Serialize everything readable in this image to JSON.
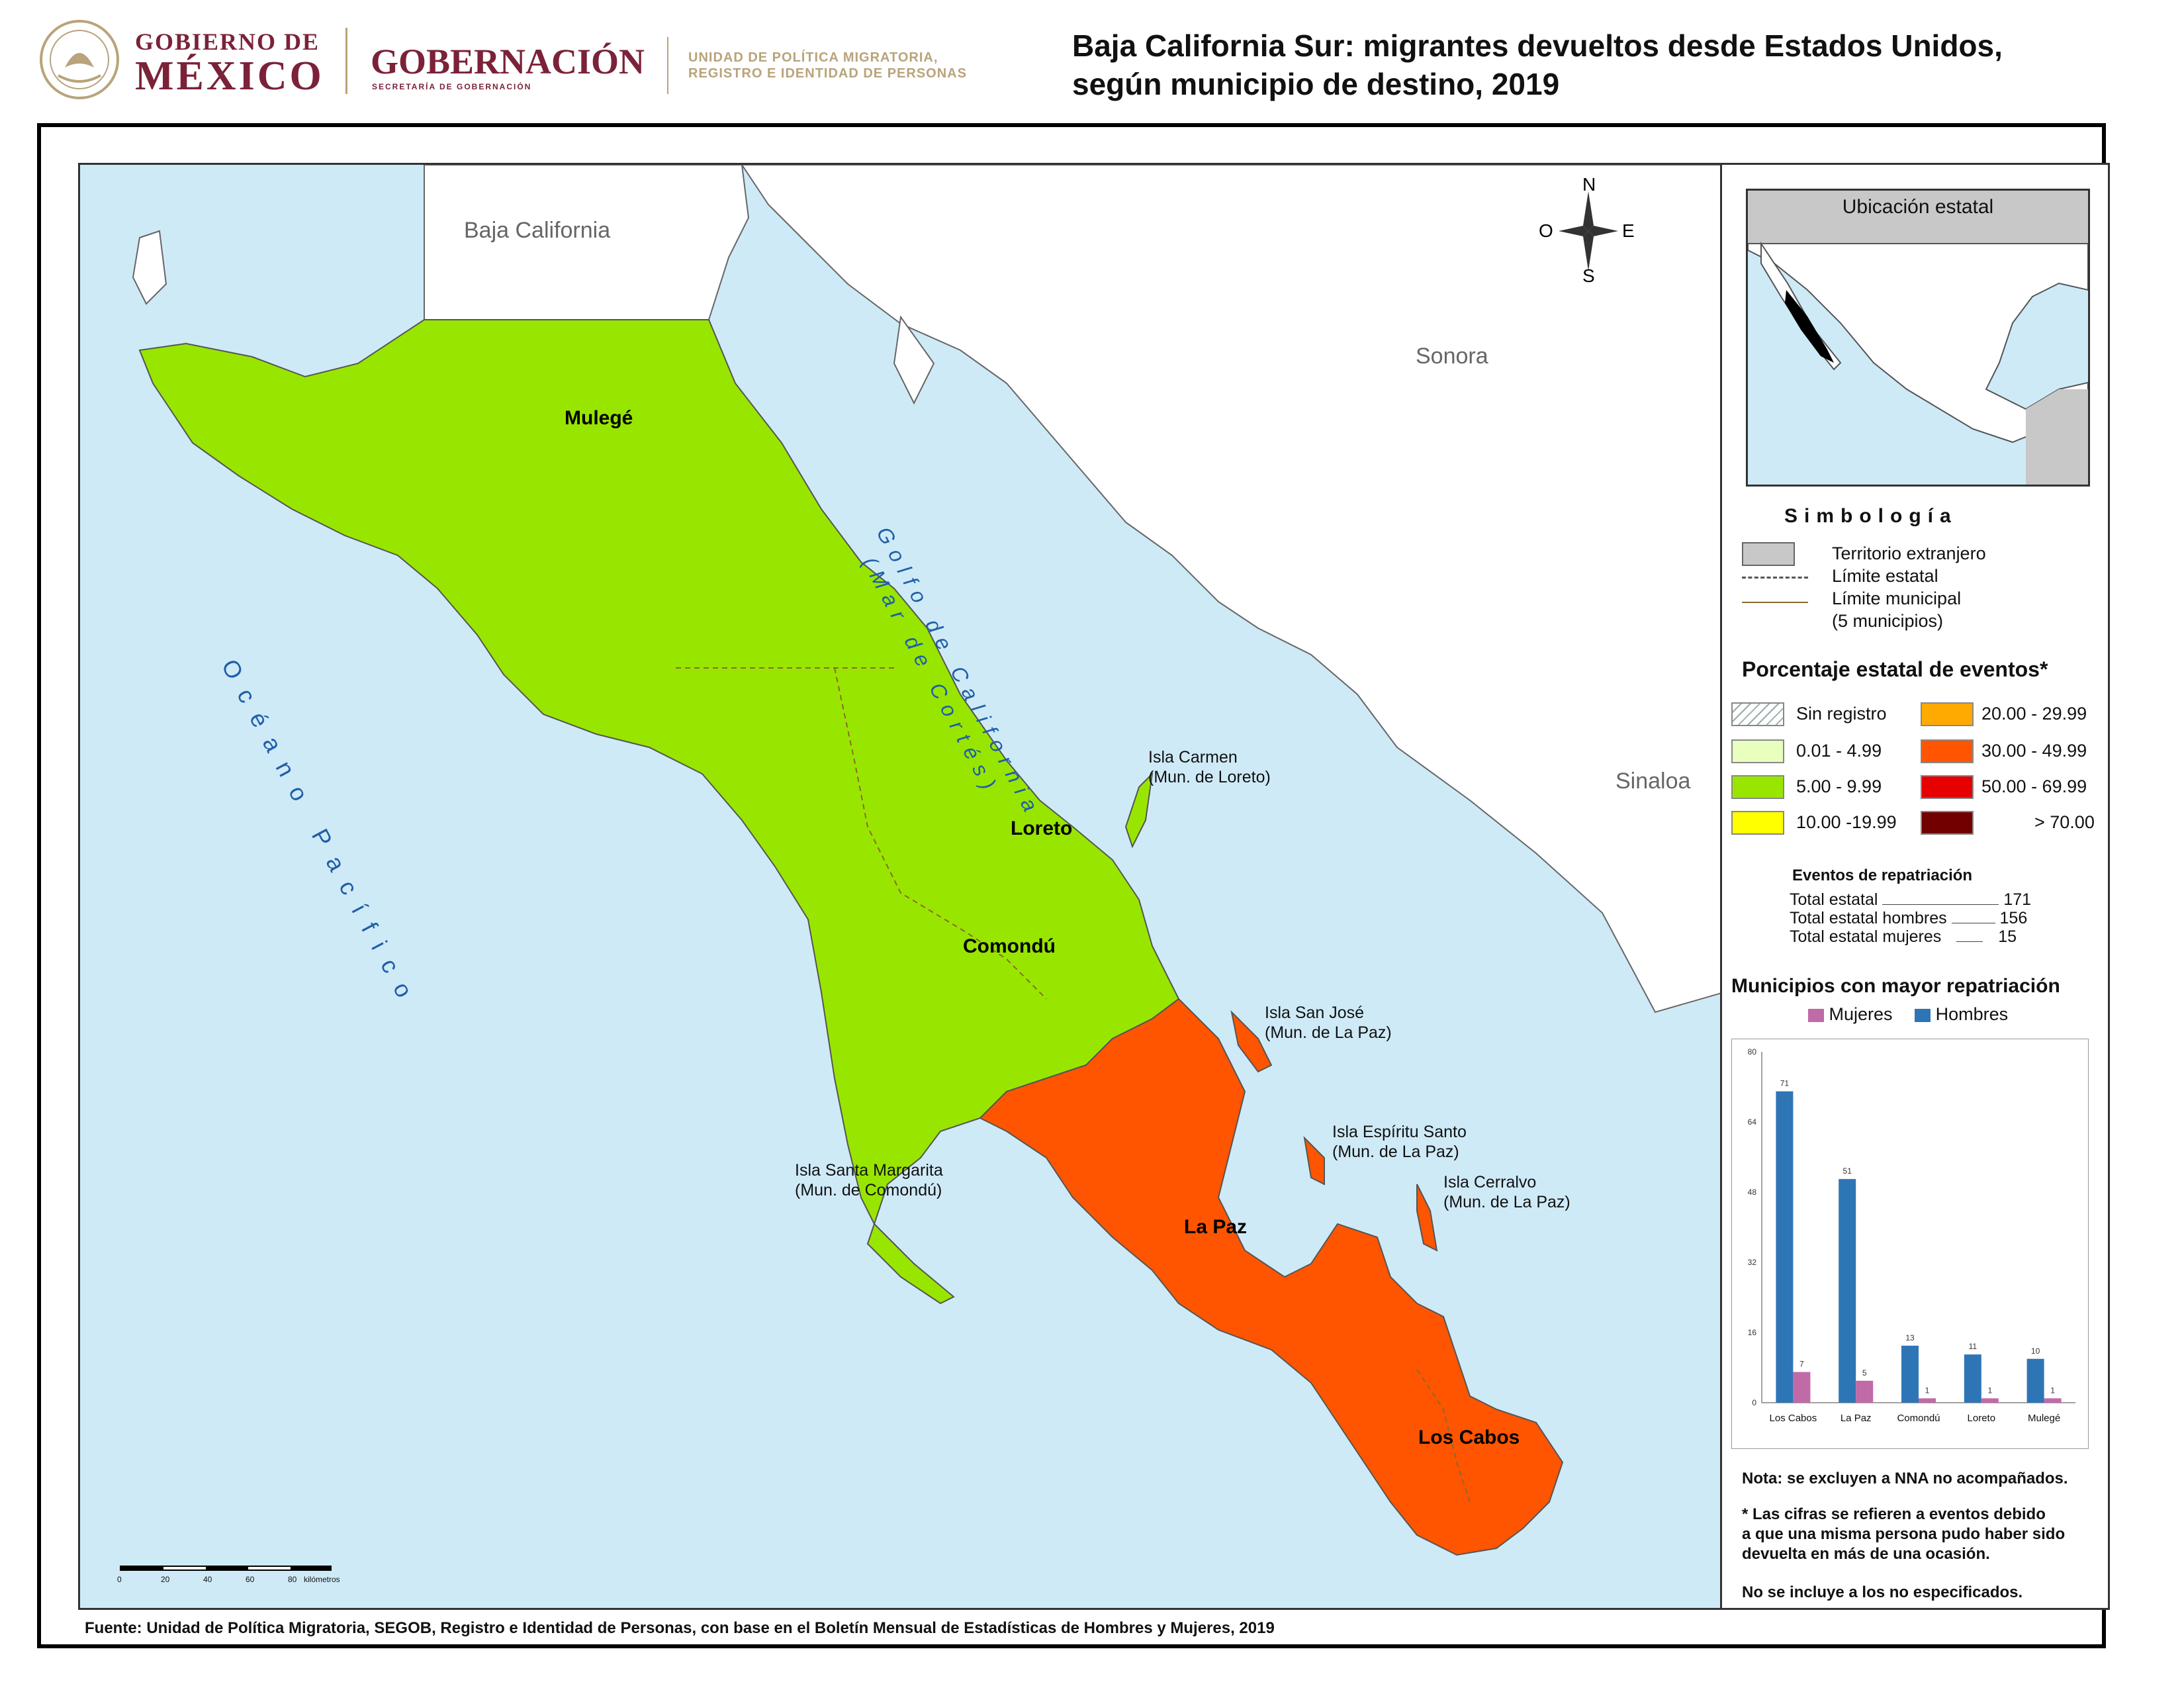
{
  "header": {
    "gob_line1": "GOBIERNO DE",
    "gob_line2": "MÉXICO",
    "secretaria": "GOBERNACIÓN",
    "secretaria_sub": "SECRETARÍA DE GOBERNACIÓN",
    "unidad_line1": "UNIDAD DE POLÍTICA MIGRATORIA,",
    "unidad_line2": "REGISTRO E IDENTIDAD DE PERSONAS"
  },
  "title": {
    "line1": "Baja California Sur: migrantes devueltos desde Estados Unidos,",
    "line2": "según municipio de destino, 2019"
  },
  "map": {
    "neighbors": {
      "baja_california": "Baja California",
      "sonora": "Sonora",
      "sinaloa": "Sinaloa"
    },
    "water": {
      "gulf_line1": "Golfo de California",
      "gulf_line2": "(Mar de Cortés)",
      "ocean": "Océano Pacífico"
    },
    "compass": {
      "n": "N",
      "s": "S",
      "e": "E",
      "o": "O"
    },
    "municipalities": [
      {
        "name": "Mulegé",
        "color": "#98e600",
        "range": "5.00 - 9.99"
      },
      {
        "name": "Loreto",
        "color": "#98e600",
        "range": "5.00 - 9.99"
      },
      {
        "name": "Comondú",
        "color": "#98e600",
        "range": "5.00 - 9.99"
      },
      {
        "name": "La Paz",
        "color": "#ff5500",
        "range": "30.00 - 49.99"
      },
      {
        "name": "Los Cabos",
        "color": "#ff5500",
        "range": "30.00 - 49.99"
      }
    ],
    "islands": [
      {
        "name": "Isla Carmen",
        "mun": "(Mun. de Loreto)"
      },
      {
        "name": "Isla San José",
        "mun": "(Mun. de La Paz)"
      },
      {
        "name": "Isla Espíritu Santo",
        "mun": "(Mun. de La Paz)"
      },
      {
        "name": "Isla Cerralvo",
        "mun": "(Mun. de La Paz)"
      },
      {
        "name": "Isla Santa Margarita",
        "mun": "(Mun. de Comondú)"
      }
    ],
    "scale": {
      "ticks": [
        "0",
        "20",
        "40",
        "60",
        "80"
      ],
      "unit": "kilómetros"
    }
  },
  "inset": {
    "title": "Ubicación estatal"
  },
  "legend": {
    "title": "Simbología",
    "items": {
      "territorio": "Territorio extranjero",
      "limite_estatal": "Límite estatal",
      "limite_municipal": "Límite municipal",
      "municipios_count": "(5 municipios)"
    },
    "pct_title": "Porcentaje estatal de eventos*",
    "classes": [
      {
        "label": "Sin registro",
        "color": "hatch"
      },
      {
        "label": "0.01  - 4.99",
        "color": "#e9ffbe"
      },
      {
        "label": "5.00  - 9.99",
        "color": "#98e600"
      },
      {
        "label": "10.00 -19.99",
        "color": "#ffff00"
      },
      {
        "label": "20.00 - 29.99",
        "color": "#ffaa00"
      },
      {
        "label": "30.00 - 49.99",
        "color": "#ff5500"
      },
      {
        "label": "50.00 - 69.99",
        "color": "#e60000"
      },
      {
        "label": "> 70.00",
        "color": "#730000"
      }
    ]
  },
  "events": {
    "title": "Eventos de repatriación",
    "rows": [
      {
        "label": "Total estatal",
        "value": "171"
      },
      {
        "label": "Total estatal hombres",
        "value": "156"
      },
      {
        "label": "Total estatal mujeres",
        "value": "15"
      }
    ]
  },
  "chart_data": {
    "type": "bar",
    "title": "Municipios con mayor repatriación",
    "categories": [
      "Los Cabos",
      "La Paz",
      "Comondú",
      "Loreto",
      "Mulegé"
    ],
    "series": [
      {
        "name": "Hombres",
        "values": [
          71,
          51,
          13,
          11,
          10
        ],
        "color": "#2e75b6"
      },
      {
        "name": "Mujeres",
        "values": [
          7,
          5,
          1,
          1,
          1
        ],
        "color": "#c06aa8"
      }
    ],
    "ylim": [
      0,
      80
    ],
    "yticks": [
      "0",
      "16",
      "32",
      "48",
      "64",
      "80"
    ],
    "legend": "top"
  },
  "notes": {
    "nota": "Nota: se excluyen a NNA no acompañados.",
    "asterisk_l1": "* Las cifras se refieren a eventos debido",
    "asterisk_l2": "a que una misma persona pudo haber sido",
    "asterisk_l3": "devuelta en más de una ocasión.",
    "no_especificados": "No se incluye a los no especificados."
  },
  "source": "Fuente: Unidad de Política Migratoria, SEGOB, Registro e Identidad de Personas, con base en el Boletín Mensual de Estadísticas de Hombres y Mujeres, 2019"
}
